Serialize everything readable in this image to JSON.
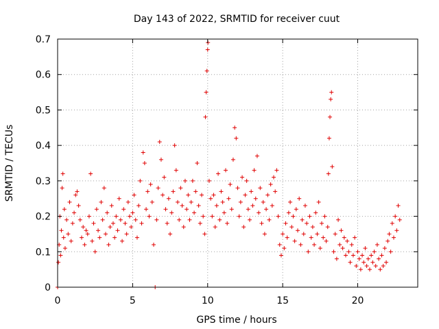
{
  "chart_data": {
    "type": "scatter",
    "title": "Day 143 of 2022, SRMTID for receiver cuut",
    "xlabel": "GPS time / hours",
    "ylabel": "SRMTID / TECUs",
    "xlim": [
      0,
      24
    ],
    "ylim": [
      0,
      0.7
    ],
    "x_ticks": [
      0,
      5,
      10,
      15,
      20
    ],
    "x_tick_labels": [
      "0",
      "5",
      "10",
      "15",
      "20"
    ],
    "y_ticks": [
      0,
      0.1,
      0.2,
      0.3,
      0.4,
      0.5,
      0.6,
      0.7
    ],
    "y_tick_labels": [
      "0",
      "0.1",
      "0.2",
      "0.3",
      "0.4",
      "0.5",
      "0.6",
      "0.7"
    ],
    "grid": true,
    "marker": "plus",
    "series": [
      {
        "name": "SRMTID",
        "color": "#e00000",
        "points": [
          [
            0.0,
            0.0
          ],
          [
            0.05,
            0.07
          ],
          [
            0.1,
            0.12
          ],
          [
            0.15,
            0.2
          ],
          [
            0.2,
            0.09
          ],
          [
            0.25,
            0.16
          ],
          [
            0.3,
            0.28
          ],
          [
            0.35,
            0.32
          ],
          [
            0.4,
            0.14
          ],
          [
            0.45,
            0.22
          ],
          [
            0.5,
            0.11
          ],
          [
            0.6,
            0.19
          ],
          [
            0.7,
            0.15
          ],
          [
            0.8,
            0.24
          ],
          [
            0.9,
            0.13
          ],
          [
            1.0,
            0.18
          ],
          [
            1.1,
            0.21
          ],
          [
            1.2,
            0.26
          ],
          [
            1.3,
            0.27
          ],
          [
            1.4,
            0.23
          ],
          [
            1.5,
            0.19
          ],
          [
            1.6,
            0.14
          ],
          [
            1.7,
            0.17
          ],
          [
            1.8,
            0.12
          ],
          [
            1.9,
            0.16
          ],
          [
            2.0,
            0.15
          ],
          [
            2.1,
            0.2
          ],
          [
            2.2,
            0.32
          ],
          [
            2.3,
            0.13
          ],
          [
            2.4,
            0.18
          ],
          [
            2.5,
            0.1
          ],
          [
            2.6,
            0.22
          ],
          [
            2.7,
            0.16
          ],
          [
            2.8,
            0.14
          ],
          [
            2.9,
            0.24
          ],
          [
            3.0,
            0.19
          ],
          [
            3.1,
            0.28
          ],
          [
            3.2,
            0.15
          ],
          [
            3.3,
            0.21
          ],
          [
            3.4,
            0.12
          ],
          [
            3.5,
            0.17
          ],
          [
            3.6,
            0.23
          ],
          [
            3.7,
            0.18
          ],
          [
            3.8,
            0.14
          ],
          [
            3.9,
            0.2
          ],
          [
            4.0,
            0.16
          ],
          [
            4.1,
            0.25
          ],
          [
            4.2,
            0.19
          ],
          [
            4.3,
            0.13
          ],
          [
            4.4,
            0.22
          ],
          [
            4.5,
            0.18
          ],
          [
            4.6,
            0.15
          ],
          [
            4.7,
            0.24
          ],
          [
            4.8,
            0.2
          ],
          [
            4.9,
            0.17
          ],
          [
            5.0,
            0.21
          ],
          [
            5.1,
            0.26
          ],
          [
            5.2,
            0.19
          ],
          [
            5.3,
            0.14
          ],
          [
            5.4,
            0.23
          ],
          [
            5.5,
            0.3
          ],
          [
            5.6,
            0.18
          ],
          [
            5.7,
            0.38
          ],
          [
            5.8,
            0.35
          ],
          [
            5.9,
            0.22
          ],
          [
            6.0,
            0.27
          ],
          [
            6.1,
            0.2
          ],
          [
            6.2,
            0.29
          ],
          [
            6.3,
            0.24
          ],
          [
            6.4,
            0.12
          ],
          [
            6.5,
            0.0
          ],
          [
            6.6,
            0.19
          ],
          [
            6.7,
            0.28
          ],
          [
            6.8,
            0.41
          ],
          [
            6.9,
            0.36
          ],
          [
            7.0,
            0.26
          ],
          [
            7.1,
            0.31
          ],
          [
            7.2,
            0.22
          ],
          [
            7.3,
            0.18
          ],
          [
            7.4,
            0.25
          ],
          [
            7.5,
            0.15
          ],
          [
            7.6,
            0.21
          ],
          [
            7.7,
            0.27
          ],
          [
            7.8,
            0.4
          ],
          [
            7.9,
            0.33
          ],
          [
            8.0,
            0.24
          ],
          [
            8.1,
            0.19
          ],
          [
            8.2,
            0.28
          ],
          [
            8.3,
            0.23
          ],
          [
            8.4,
            0.17
          ],
          [
            8.5,
            0.3
          ],
          [
            8.6,
            0.22
          ],
          [
            8.7,
            0.26
          ],
          [
            8.8,
            0.19
          ],
          [
            8.9,
            0.24
          ],
          [
            9.0,
            0.3
          ],
          [
            9.1,
            0.21
          ],
          [
            9.2,
            0.27
          ],
          [
            9.3,
            0.35
          ],
          [
            9.4,
            0.23
          ],
          [
            9.5,
            0.18
          ],
          [
            9.6,
            0.26
          ],
          [
            9.7,
            0.2
          ],
          [
            9.8,
            0.15
          ],
          [
            9.85,
            0.48
          ],
          [
            9.9,
            0.55
          ],
          [
            9.95,
            0.61
          ],
          [
            10.0,
            0.67
          ],
          [
            10.02,
            0.69
          ],
          [
            10.1,
            0.3
          ],
          [
            10.2,
            0.25
          ],
          [
            10.3,
            0.2
          ],
          [
            10.4,
            0.26
          ],
          [
            10.5,
            0.17
          ],
          [
            10.6,
            0.23
          ],
          [
            10.7,
            0.32
          ],
          [
            10.8,
            0.19
          ],
          [
            10.9,
            0.27
          ],
          [
            11.0,
            0.24
          ],
          [
            11.1,
            0.21
          ],
          [
            11.2,
            0.33
          ],
          [
            11.3,
            0.18
          ],
          [
            11.4,
            0.25
          ],
          [
            11.5,
            0.29
          ],
          [
            11.6,
            0.22
          ],
          [
            11.7,
            0.36
          ],
          [
            11.8,
            0.45
          ],
          [
            11.9,
            0.42
          ],
          [
            12.0,
            0.28
          ],
          [
            12.1,
            0.2
          ],
          [
            12.2,
            0.24
          ],
          [
            12.3,
            0.31
          ],
          [
            12.4,
            0.17
          ],
          [
            12.5,
            0.26
          ],
          [
            12.6,
            0.3
          ],
          [
            12.7,
            0.22
          ],
          [
            12.8,
            0.19
          ],
          [
            12.9,
            0.27
          ],
          [
            13.0,
            0.23
          ],
          [
            13.1,
            0.33
          ],
          [
            13.2,
            0.25
          ],
          [
            13.3,
            0.37
          ],
          [
            13.4,
            0.21
          ],
          [
            13.5,
            0.28
          ],
          [
            13.6,
            0.18
          ],
          [
            13.7,
            0.24
          ],
          [
            13.8,
            0.15
          ],
          [
            13.9,
            0.22
          ],
          [
            14.0,
            0.26
          ],
          [
            14.1,
            0.19
          ],
          [
            14.2,
            0.29
          ],
          [
            14.3,
            0.23
          ],
          [
            14.4,
            0.31
          ],
          [
            14.5,
            0.27
          ],
          [
            14.6,
            0.33
          ],
          [
            14.7,
            0.2
          ],
          [
            14.8,
            0.12
          ],
          [
            14.9,
            0.09
          ],
          [
            15.0,
            0.15
          ],
          [
            15.1,
            0.11
          ],
          [
            15.2,
            0.18
          ],
          [
            15.3,
            0.14
          ],
          [
            15.4,
            0.21
          ],
          [
            15.5,
            0.24
          ],
          [
            15.6,
            0.17
          ],
          [
            15.7,
            0.2
          ],
          [
            15.8,
            0.13
          ],
          [
            15.9,
            0.22
          ],
          [
            16.0,
            0.16
          ],
          [
            16.1,
            0.25
          ],
          [
            16.2,
            0.12
          ],
          [
            16.3,
            0.19
          ],
          [
            16.4,
            0.15
          ],
          [
            16.5,
            0.23
          ],
          [
            16.6,
            0.18
          ],
          [
            16.7,
            0.1
          ],
          [
            16.8,
            0.2
          ],
          [
            16.9,
            0.14
          ],
          [
            17.0,
            0.17
          ],
          [
            17.1,
            0.12
          ],
          [
            17.2,
            0.21
          ],
          [
            17.3,
            0.15
          ],
          [
            17.4,
            0.24
          ],
          [
            17.5,
            0.11
          ],
          [
            17.6,
            0.18
          ],
          [
            17.7,
            0.14
          ],
          [
            17.8,
            0.2
          ],
          [
            17.9,
            0.13
          ],
          [
            18.0,
            0.17
          ],
          [
            18.05,
            0.32
          ],
          [
            18.1,
            0.42
          ],
          [
            18.15,
            0.48
          ],
          [
            18.2,
            0.53
          ],
          [
            18.25,
            0.55
          ],
          [
            18.3,
            0.34
          ],
          [
            18.4,
            0.1
          ],
          [
            18.5,
            0.15
          ],
          [
            18.6,
            0.08
          ],
          [
            18.7,
            0.19
          ],
          [
            18.8,
            0.12
          ],
          [
            18.9,
            0.16
          ],
          [
            19.0,
            0.11
          ],
          [
            19.1,
            0.14
          ],
          [
            19.2,
            0.09
          ],
          [
            19.3,
            0.13
          ],
          [
            19.4,
            0.1
          ],
          [
            19.5,
            0.07
          ],
          [
            19.6,
            0.12
          ],
          [
            19.7,
            0.09
          ],
          [
            19.8,
            0.14
          ],
          [
            19.9,
            0.06
          ],
          [
            20.0,
            0.1
          ],
          [
            20.1,
            0.08
          ],
          [
            20.2,
            0.05
          ],
          [
            20.3,
            0.09
          ],
          [
            20.4,
            0.07
          ],
          [
            20.5,
            0.11
          ],
          [
            20.6,
            0.06
          ],
          [
            20.7,
            0.08
          ],
          [
            20.8,
            0.05
          ],
          [
            20.9,
            0.09
          ],
          [
            21.0,
            0.07
          ],
          [
            21.1,
            0.1
          ],
          [
            21.2,
            0.06
          ],
          [
            21.3,
            0.12
          ],
          [
            21.4,
            0.08
          ],
          [
            21.5,
            0.05
          ],
          [
            21.6,
            0.09
          ],
          [
            21.7,
            0.06
          ],
          [
            21.8,
            0.11
          ],
          [
            21.9,
            0.07
          ],
          [
            22.0,
            0.13
          ],
          [
            22.1,
            0.15
          ],
          [
            22.2,
            0.1
          ],
          [
            22.3,
            0.18
          ],
          [
            22.4,
            0.14
          ],
          [
            22.5,
            0.2
          ],
          [
            22.6,
            0.16
          ],
          [
            22.7,
            0.23
          ],
          [
            22.8,
            0.19
          ]
        ]
      }
    ]
  }
}
